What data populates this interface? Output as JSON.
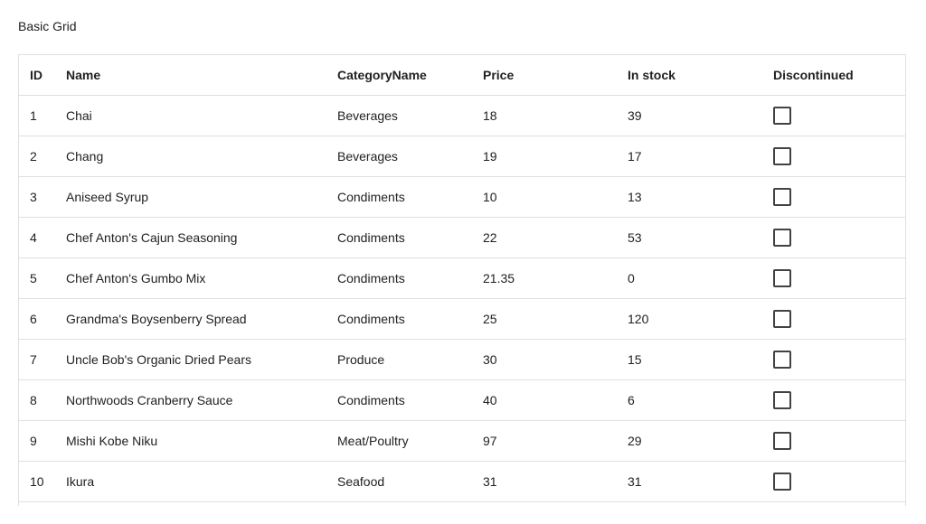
{
  "page": {
    "title": "Basic Grid"
  },
  "grid": {
    "columns": {
      "id": "ID",
      "name": "Name",
      "category": "CategoryName",
      "price": "Price",
      "stock": "In stock",
      "discontinued": "Discontinued"
    },
    "rows": [
      {
        "id": "1",
        "name": "Chai",
        "category": "Beverages",
        "price": "18",
        "stock": "39",
        "discontinued": false
      },
      {
        "id": "2",
        "name": "Chang",
        "category": "Beverages",
        "price": "19",
        "stock": "17",
        "discontinued": false
      },
      {
        "id": "3",
        "name": "Aniseed Syrup",
        "category": "Condiments",
        "price": "10",
        "stock": "13",
        "discontinued": false
      },
      {
        "id": "4",
        "name": "Chef Anton's Cajun Seasoning",
        "category": "Condiments",
        "price": "22",
        "stock": "53",
        "discontinued": false
      },
      {
        "id": "5",
        "name": "Chef Anton's Gumbo Mix",
        "category": "Condiments",
        "price": "21.35",
        "stock": "0",
        "discontinued": false
      },
      {
        "id": "6",
        "name": "Grandma's Boysenberry Spread",
        "category": "Condiments",
        "price": "25",
        "stock": "120",
        "discontinued": false
      },
      {
        "id": "7",
        "name": "Uncle Bob's Organic Dried Pears",
        "category": "Produce",
        "price": "30",
        "stock": "15",
        "discontinued": false
      },
      {
        "id": "8",
        "name": "Northwoods Cranberry Sauce",
        "category": "Condiments",
        "price": "40",
        "stock": "6",
        "discontinued": false
      },
      {
        "id": "9",
        "name": "Mishi Kobe Niku",
        "category": "Meat/Poultry",
        "price": "97",
        "stock": "29",
        "discontinued": false
      },
      {
        "id": "10",
        "name": "Ikura",
        "category": "Seafood",
        "price": "31",
        "stock": "31",
        "discontinued": false
      }
    ]
  }
}
